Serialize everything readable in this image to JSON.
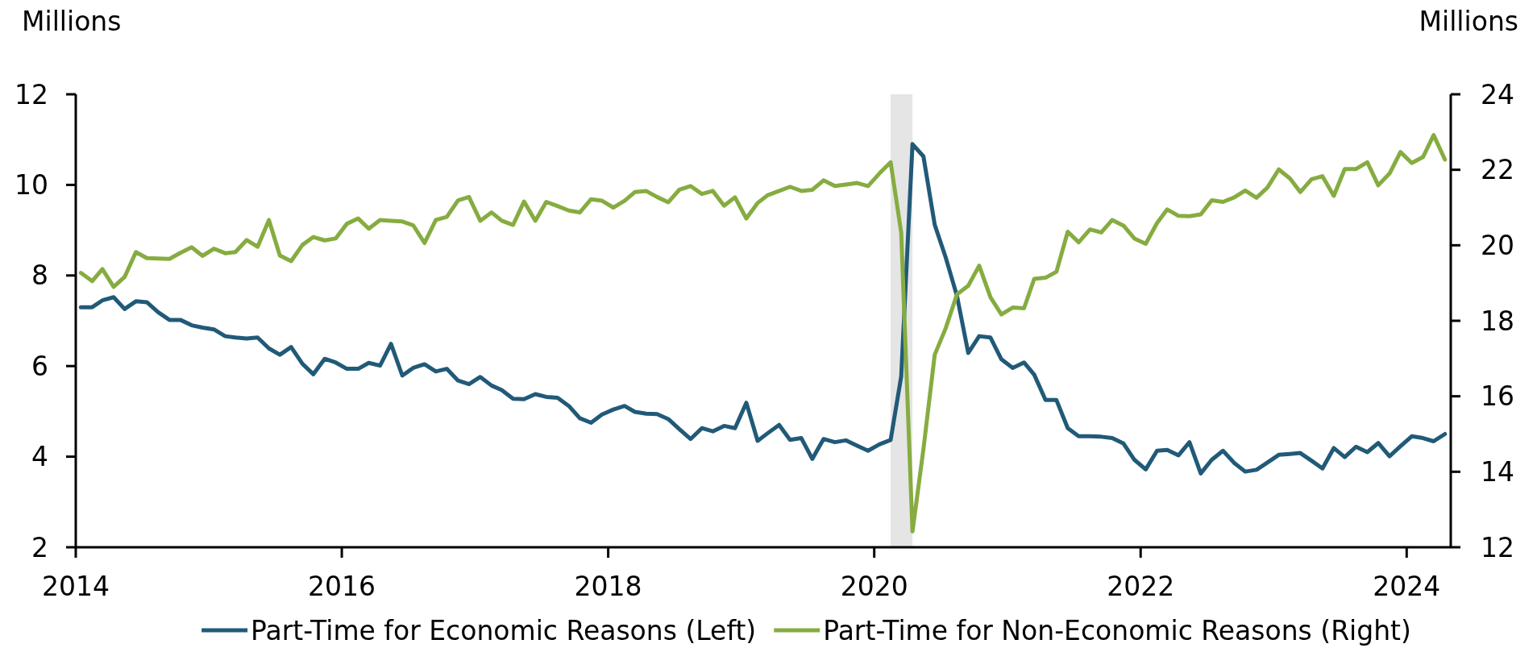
{
  "chart_data": {
    "type": "line",
    "ylabel": "Millions",
    "y2label": "Millions",
    "x": [
      "2014-01-15",
      "2014-02-15",
      "2014-03-15",
      "2014-04-15",
      "2014-05-15",
      "2014-06-15",
      "2014-07-15",
      "2014-08-15",
      "2014-09-15",
      "2014-10-15",
      "2014-11-15",
      "2014-12-15",
      "2015-01-15",
      "2015-02-15",
      "2015-03-15",
      "2015-04-15",
      "2015-05-15",
      "2015-06-15",
      "2015-07-15",
      "2015-08-15",
      "2015-09-15",
      "2015-10-15",
      "2015-11-15",
      "2015-12-15",
      "2016-01-15",
      "2016-02-15",
      "2016-03-15",
      "2016-04-15",
      "2016-05-15",
      "2016-06-15",
      "2016-07-15",
      "2016-08-15",
      "2016-09-15",
      "2016-10-15",
      "2016-11-15",
      "2016-12-15",
      "2017-01-15",
      "2017-02-15",
      "2017-03-15",
      "2017-04-15",
      "2017-05-15",
      "2017-06-15",
      "2017-07-15",
      "2017-08-15",
      "2017-09-15",
      "2017-10-15",
      "2017-11-15",
      "2017-12-15",
      "2018-01-15",
      "2018-02-15",
      "2018-03-15",
      "2018-04-15",
      "2018-05-15",
      "2018-06-15",
      "2018-07-15",
      "2018-08-15",
      "2018-09-15",
      "2018-10-15",
      "2018-11-15",
      "2018-12-15",
      "2019-01-15",
      "2019-02-15",
      "2019-03-15",
      "2019-04-15",
      "2019-05-15",
      "2019-06-15",
      "2019-07-15",
      "2019-08-15",
      "2019-09-15",
      "2019-10-15",
      "2019-11-15",
      "2019-12-15",
      "2020-01-15",
      "2020-02-15",
      "2020-03-15",
      "2020-04-15",
      "2020-05-15",
      "2020-06-15",
      "2020-07-15",
      "2020-08-15",
      "2020-09-15",
      "2020-10-15",
      "2020-11-15",
      "2020-12-15",
      "2021-01-15",
      "2021-02-15",
      "2021-03-15",
      "2021-04-15",
      "2021-05-15",
      "2021-06-15",
      "2021-07-15",
      "2021-08-15",
      "2021-09-15",
      "2021-10-15",
      "2021-11-15",
      "2021-12-15",
      "2022-01-15",
      "2022-02-15",
      "2022-03-15",
      "2022-04-15",
      "2022-05-15",
      "2022-06-15",
      "2022-07-15",
      "2022-08-15",
      "2022-09-15",
      "2022-10-15",
      "2022-11-15",
      "2022-12-15",
      "2023-01-15",
      "2023-02-15",
      "2023-03-15",
      "2023-04-15",
      "2023-05-15",
      "2023-06-15",
      "2023-07-15",
      "2023-08-15",
      "2023-09-15",
      "2023-10-15",
      "2023-11-15",
      "2023-12-15",
      "2024-01-15",
      "2024-02-15",
      "2024-03-15",
      "2024-04-15"
    ],
    "xlim": [
      "2014",
      "2024-05"
    ],
    "xticks": [
      "2014",
      "2016",
      "2018",
      "2020",
      "2022",
      "2024"
    ],
    "ylim": [
      2,
      12
    ],
    "yticks": [
      2,
      4,
      6,
      8,
      10,
      12
    ],
    "y2lim": [
      12,
      24
    ],
    "y2ticks": [
      12,
      14,
      16,
      18,
      20,
      22,
      24
    ],
    "series": [
      {
        "name": "Part-Time for Economic Reasons (Left)",
        "color": "#215a78",
        "values": [
          7.3,
          7.3,
          7.45,
          7.52,
          7.26,
          7.43,
          7.41,
          7.19,
          7.02,
          7.02,
          6.9,
          6.85,
          6.81,
          6.66,
          6.63,
          6.61,
          6.63,
          6.39,
          6.25,
          6.42,
          6.05,
          5.82,
          6.16,
          6.08,
          5.94,
          5.94,
          6.07,
          6.01,
          6.49,
          5.79,
          5.96,
          6.04,
          5.88,
          5.94,
          5.68,
          5.6,
          5.76,
          5.57,
          5.47,
          5.28,
          5.27,
          5.38,
          5.32,
          5.3,
          5.12,
          4.85,
          4.75,
          4.93,
          5.04,
          5.12,
          4.99,
          4.95,
          4.94,
          4.83,
          4.61,
          4.39,
          4.63,
          4.56,
          4.68,
          4.63,
          5.19,
          4.35,
          4.52,
          4.7,
          4.37,
          4.41,
          3.95,
          4.39,
          4.32,
          4.36,
          4.24,
          4.13,
          4.27,
          4.37,
          5.77,
          10.9,
          10.63,
          9.12,
          8.4,
          7.55,
          6.29,
          6.66,
          6.63,
          6.15,
          5.96,
          6.08,
          5.81,
          5.25,
          5.25,
          4.63,
          4.45,
          4.45,
          4.44,
          4.41,
          4.29,
          3.93,
          3.72,
          4.13,
          4.15,
          4.03,
          4.32,
          3.63,
          3.93,
          4.13,
          3.86,
          3.67,
          3.71,
          3.87,
          4.04,
          4.06,
          4.08,
          3.91,
          3.74,
          4.19,
          3.99,
          4.22,
          4.1,
          4.3,
          4.01,
          4.23,
          4.45,
          4.41,
          4.34,
          4.5
        ]
      },
      {
        "name": "Part-Time for Non-Economic Reasons (Right)",
        "color": "#86ac41",
        "axis": "y2",
        "values": [
          19.27,
          19.05,
          19.37,
          18.9,
          19.16,
          19.82,
          19.66,
          19.65,
          19.64,
          19.8,
          19.95,
          19.72,
          19.91,
          19.79,
          19.82,
          20.14,
          19.96,
          20.67,
          19.73,
          19.58,
          20.01,
          20.22,
          20.13,
          20.18,
          20.57,
          20.71,
          20.44,
          20.67,
          20.65,
          20.63,
          20.53,
          20.06,
          20.67,
          20.75,
          21.19,
          21.28,
          20.65,
          20.87,
          20.65,
          20.54,
          21.16,
          20.65,
          21.15,
          21.04,
          20.92,
          20.87,
          21.22,
          21.18,
          21.0,
          21.18,
          21.41,
          21.44,
          21.28,
          21.14,
          21.47,
          21.57,
          21.36,
          21.44,
          21.05,
          21.27,
          20.71,
          21.12,
          21.33,
          21.44,
          21.55,
          21.44,
          21.47,
          21.72,
          21.57,
          21.61,
          21.65,
          21.57,
          21.9,
          22.2,
          20.34,
          12.42,
          14.6,
          17.1,
          17.8,
          18.7,
          18.93,
          19.46,
          18.62,
          18.17,
          18.35,
          18.33,
          19.11,
          19.14,
          19.3,
          20.36,
          20.08,
          20.42,
          20.34,
          20.67,
          20.52,
          20.18,
          20.04,
          20.59,
          20.95,
          20.78,
          20.77,
          20.82,
          21.19,
          21.15,
          21.27,
          21.45,
          21.26,
          21.53,
          22.01,
          21.77,
          21.41,
          21.75,
          21.83,
          21.31,
          22.02,
          22.02,
          22.2,
          21.59,
          21.9,
          22.47,
          22.18,
          22.34,
          22.92,
          22.27
        ]
      }
    ],
    "bands": [
      {
        "axis": "x",
        "from": "2020-02-15",
        "to": "2020-04-15",
        "color": "#e5e5e5"
      }
    ],
    "legend": "bottom",
    "line_style": "solid"
  }
}
